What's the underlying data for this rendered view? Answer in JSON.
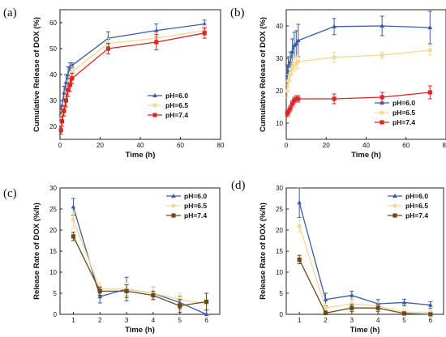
{
  "chart_data": [
    {
      "panel": "(a)",
      "type": "line",
      "xlabel": "Time (h)",
      "ylabel": "Cumulative Release of DOX (%)",
      "xlim": [
        0,
        80
      ],
      "ylim": [
        15,
        65
      ],
      "xticks": [
        0,
        20,
        40,
        60,
        80
      ],
      "yticks": [
        20,
        30,
        40,
        50,
        60
      ],
      "grid": false,
      "legend_position": "lower-right",
      "series": [
        {
          "name": "pH=6.0",
          "color": "#3b5ca8",
          "marker": "triangle",
          "x": [
            0.5,
            1,
            2,
            3,
            4,
            5,
            6,
            24,
            48,
            72
          ],
          "y": [
            25,
            28,
            33,
            37,
            40,
            43,
            43.5,
            54,
            57,
            59.5
          ],
          "err": [
            2,
            2,
            2.5,
            3,
            3,
            1.5,
            1,
            2.5,
            2.5,
            1.5
          ]
        },
        {
          "name": "pH=6.5",
          "color": "#f2d99a",
          "marker": "circle",
          "x": [
            0.5,
            1,
            2,
            3,
            4,
            5,
            6,
            24,
            48,
            72
          ],
          "y": [
            21,
            24,
            27,
            31,
            35,
            38,
            41,
            52,
            54,
            57
          ],
          "err": [
            2,
            2,
            2,
            2.5,
            2.5,
            2,
            2,
            2,
            2,
            2
          ]
        },
        {
          "name": "pH=7.4",
          "color": "#d62828",
          "marker": "square",
          "x": [
            0.5,
            1,
            2,
            3,
            4,
            5,
            6,
            24,
            48,
            72
          ],
          "y": [
            18.5,
            22,
            26,
            30,
            34,
            36,
            38.5,
            50,
            52.5,
            56
          ],
          "err": [
            1.5,
            2,
            2,
            2.5,
            2.5,
            2.5,
            2,
            2,
            3,
            2
          ]
        }
      ]
    },
    {
      "panel": "(b)",
      "type": "line",
      "xlabel": "Time (h)",
      "ylabel": "Cumulative Release of DOX (%)",
      "xlim": [
        0,
        80
      ],
      "ylim": [
        5,
        45
      ],
      "xticks": [
        0,
        20,
        40,
        60,
        80
      ],
      "yticks": [
        10,
        20,
        30,
        40
      ],
      "grid": false,
      "legend_position": "lower-right",
      "series": [
        {
          "name": "pH=6.0",
          "color": "#3b5ca8",
          "marker": "triangle",
          "x": [
            0.5,
            1,
            2,
            3,
            4,
            5,
            6,
            24,
            48,
            72
          ],
          "y": [
            25,
            27.5,
            29,
            32,
            34,
            34.5,
            35.5,
            39.8,
            40,
            39.5
          ],
          "err": [
            3,
            3,
            3,
            4,
            4,
            4,
            5,
            2.5,
            3,
            5
          ]
        },
        {
          "name": "pH=6.5",
          "color": "#f2d99a",
          "marker": "circle",
          "x": [
            0.5,
            1,
            2,
            3,
            4,
            5,
            6,
            24,
            48,
            72
          ],
          "y": [
            20,
            23,
            25,
            27,
            28,
            28.5,
            29,
            30.3,
            31,
            32.5
          ],
          "err": [
            2,
            2,
            2,
            2,
            2,
            2,
            2,
            1.5,
            1,
            1.5
          ]
        },
        {
          "name": "pH=7.4",
          "color": "#d62828",
          "marker": "square",
          "x": [
            0.5,
            1,
            2,
            3,
            4,
            5,
            6,
            24,
            48,
            72
          ],
          "y": [
            13,
            13.5,
            14.5,
            16,
            17,
            17.5,
            17.5,
            17.5,
            18,
            19.5
          ],
          "err": [
            1,
            1,
            1,
            1,
            1,
            1,
            1,
            1.5,
            1.5,
            2
          ]
        }
      ]
    },
    {
      "panel": "(c)",
      "type": "line",
      "xlabel": "Time (h)",
      "ylabel": "Release Rate of DOX (%/h)",
      "xlim": [
        0.5,
        6.5
      ],
      "ylim": [
        0,
        30
      ],
      "xticks": [
        1,
        2,
        3,
        4,
        5,
        6
      ],
      "yticks": [
        0,
        5,
        10,
        15,
        20,
        25,
        30
      ],
      "grid": false,
      "legend_position": "top-right",
      "series": [
        {
          "name": "pH=6.0",
          "color": "#3b5ca8",
          "marker": "triangle",
          "x": [
            1,
            2,
            3,
            4,
            5,
            6
          ],
          "y": [
            25.5,
            4.2,
            6,
            5,
            2.8,
            0
          ],
          "err": [
            2,
            1.5,
            2.8,
            1.5,
            1.5,
            1
          ]
        },
        {
          "name": "pH=6.5",
          "color": "#f2d99a",
          "marker": "circle",
          "x": [
            1,
            2,
            3,
            4,
            5,
            6
          ],
          "y": [
            22.5,
            6,
            6,
            5,
            3.5,
            2.5
          ],
          "err": [
            2,
            1.5,
            1.5,
            1.5,
            1.5,
            1.5
          ]
        },
        {
          "name": "pH=7.4",
          "color": "#6b4a1a",
          "marker": "square",
          "x": [
            1,
            2,
            3,
            4,
            5,
            6
          ],
          "y": [
            18.5,
            5.5,
            5.5,
            4.5,
            2,
            3
          ],
          "err": [
            1,
            1,
            1.5,
            1,
            1.5,
            2
          ]
        }
      ]
    },
    {
      "panel": "(d)",
      "type": "line",
      "xlabel": "Time (h)",
      "ylabel": "Release Rate of DOX (%/h)",
      "xlim": [
        0.5,
        6.5
      ],
      "ylim": [
        0,
        30
      ],
      "xticks": [
        1,
        2,
        3,
        4,
        5,
        6
      ],
      "yticks": [
        0,
        5,
        10,
        15,
        20,
        25,
        30
      ],
      "grid": false,
      "legend_position": "top-right",
      "series": [
        {
          "name": "pH=6.0",
          "color": "#3b5ca8",
          "marker": "triangle",
          "x": [
            1,
            2,
            3,
            4,
            5,
            6
          ],
          "y": [
            26.5,
            3.5,
            4.5,
            2.5,
            2.8,
            2.2
          ],
          "err": [
            3.5,
            1.5,
            1,
            1,
            0.8,
            0.8
          ]
        },
        {
          "name": "pH=6.5",
          "color": "#f2d99a",
          "marker": "circle",
          "x": [
            1,
            2,
            3,
            4,
            5,
            6
          ],
          "y": [
            21,
            1.5,
            2.5,
            2,
            0.5,
            0.5
          ],
          "err": [
            1.5,
            1,
            1,
            1,
            0.5,
            0.5
          ]
        },
        {
          "name": "pH=7.4",
          "color": "#6b4a1a",
          "marker": "square",
          "x": [
            1,
            2,
            3,
            4,
            5,
            6
          ],
          "y": [
            13,
            0.3,
            1.5,
            1.5,
            0.2,
            0
          ],
          "err": [
            1,
            0.5,
            0.8,
            0.8,
            0.3,
            0.2
          ]
        }
      ]
    }
  ]
}
